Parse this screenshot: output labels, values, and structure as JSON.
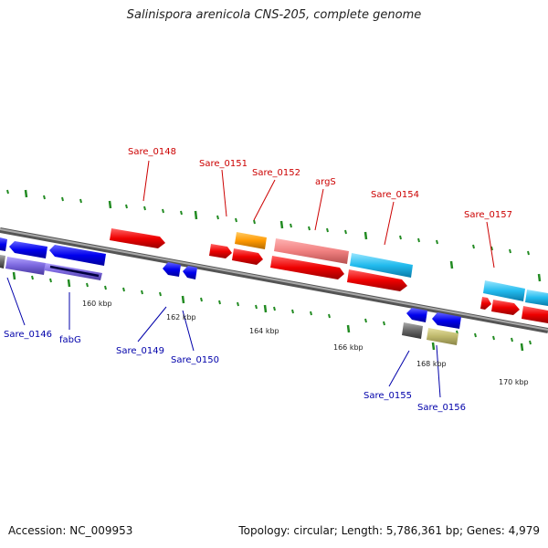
{
  "title": "Salinispora arenicola CNS-205, complete genome",
  "footer": {
    "accession": "Accession: NC_009953",
    "summary": "Topology: circular; Length: 5,786,361 bp; Genes: 4,979"
  },
  "colors": {
    "top_label": "#cc0000",
    "bottom_label": "#0000aa",
    "tick": "#228b22",
    "backbone": "#888888"
  },
  "scale_labels": [
    "160 kbp",
    "162 kbp",
    "164 kbp",
    "166 kbp",
    "168 kbp",
    "170 kbp"
  ],
  "gene_labels_top": [
    "Sare_0148",
    "Sare_0151",
    "Sare_0152",
    "argS",
    "Sare_0154",
    "Sare_0157"
  ],
  "gene_labels_bottom": [
    "Sare_0146",
    "fabG",
    "Sare_0149",
    "Sare_0150",
    "Sare_0155",
    "Sare_0156"
  ]
}
